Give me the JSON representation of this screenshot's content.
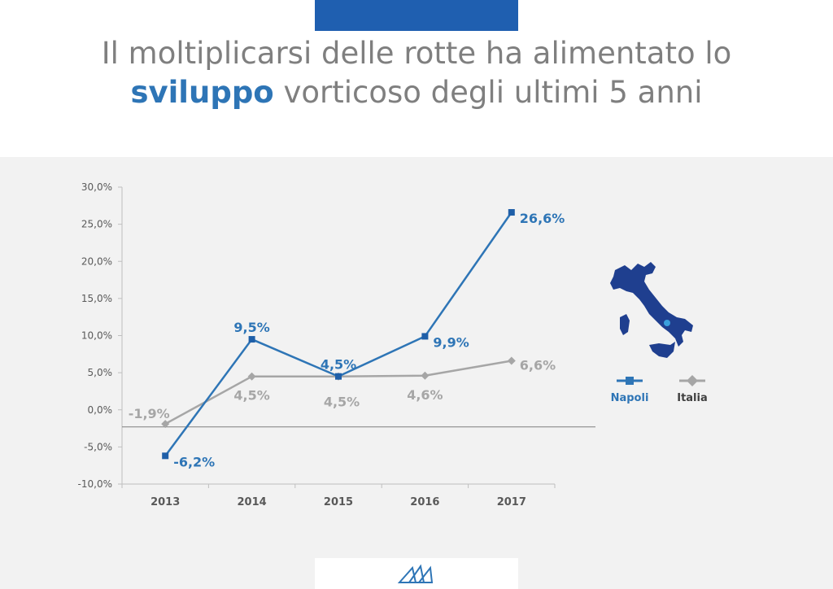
{
  "header": {
    "title_part1": "Il moltiplicarsi delle rotte ha alimentato lo",
    "title_highlight": "sviluppo",
    "title_part2": " vorticoso degli ultimi 5 anni"
  },
  "colors": {
    "napoli": "#2e75b6",
    "italia": "#a6a6a6",
    "accent_bar": "#1f5fb0",
    "map": "#1f3f8f"
  },
  "chart_data": {
    "type": "line",
    "categories": [
      "2013",
      "2014",
      "2015",
      "2016",
      "2017"
    ],
    "y_ticks": [
      "30,0%",
      "25,0%",
      "20,0%",
      "15,0%",
      "10,0%",
      "5,0%",
      "0,0%",
      "-5,0%",
      "-10,0%"
    ],
    "ylim": [
      -10,
      30
    ],
    "series": [
      {
        "name": "Napoli",
        "values": [
          -6.2,
          9.5,
          4.5,
          9.9,
          26.6
        ],
        "labels": [
          "-6,2%",
          "9,5%",
          "4,5%",
          "9,9%",
          "26,6%"
        ],
        "marker": "square"
      },
      {
        "name": "Italia",
        "values": [
          -1.9,
          4.5,
          4.5,
          4.6,
          6.6
        ],
        "labels": [
          "-1,9%",
          "4,5%",
          "4,5%",
          "4,6%",
          "6,6%"
        ],
        "marker": "diamond"
      }
    ],
    "legend_position": "right",
    "grid": false
  },
  "icons": {
    "map": "italy-map-icon",
    "logo": "airport-logo-icon"
  }
}
